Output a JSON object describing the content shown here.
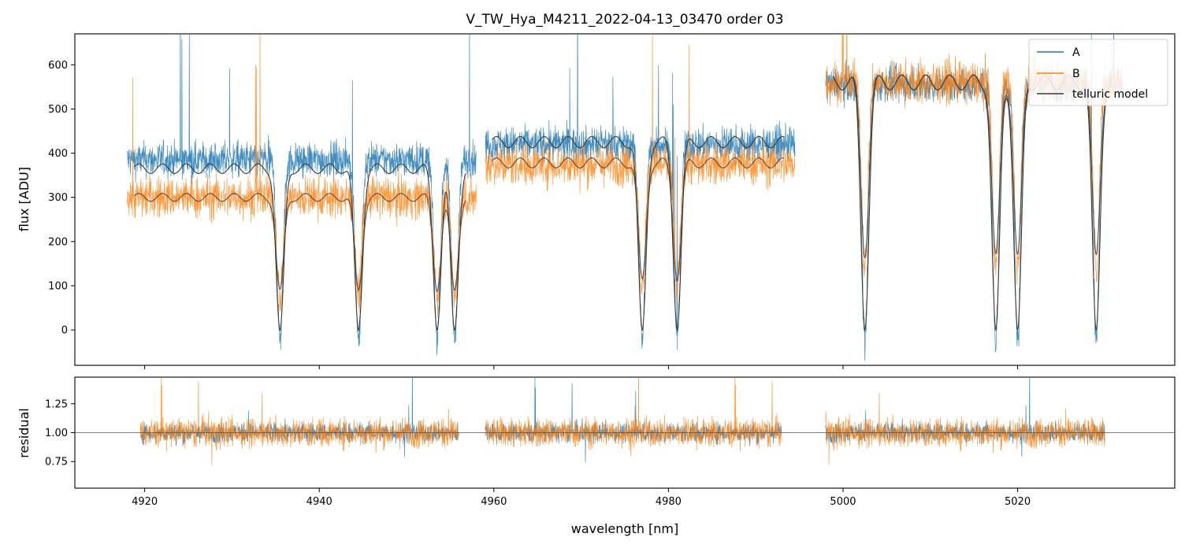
{
  "chart_data": [
    {
      "type": "line",
      "title": "V_TW_Hya_M4211_2022-04-13_03470  order 03",
      "xlabel": "",
      "ylabel": "flux [ADU]",
      "xlim": [
        4912,
        5038
      ],
      "ylim": [
        -80,
        670
      ],
      "xticks": [
        4920,
        4940,
        4960,
        4980,
        5000,
        5020
      ],
      "yticks": [
        0,
        100,
        200,
        300,
        400,
        500,
        600
      ],
      "ytick_labels": [
        "0",
        "100",
        "200",
        "300",
        "400",
        "500",
        "600"
      ],
      "legend": {
        "position": "top-right",
        "entries": [
          "A",
          "B",
          "telluric model"
        ]
      },
      "segments": [
        {
          "x": [
            4918,
            4958
          ],
          "continuum_A": 385,
          "continuum_B": 300,
          "model_A": 365,
          "model_B": 300
        },
        {
          "x": [
            4959,
            4994.5
          ],
          "continuum_A": 420,
          "continuum_B": 375,
          "model_A": 425,
          "model_B": 378
        },
        {
          "x": [
            4998,
            5032
          ],
          "continuum_A": 555,
          "continuum_B": 560,
          "model_A": 560,
          "model_B": 560
        }
      ],
      "absorption_lines_nm": [
        4935.5,
        4944.5,
        4953.5,
        4955.5,
        4977,
        4981,
        5002.5,
        5017.5,
        5020,
        5029
      ]
    },
    {
      "type": "line",
      "title": "",
      "xlabel": "wavelength [nm]",
      "ylabel": "residual",
      "xlim": [
        4912,
        5038
      ],
      "ylim": [
        0.52,
        1.48
      ],
      "xticks": [
        4920,
        4940,
        4960,
        4980,
        5000,
        5020
      ],
      "xtick_labels": [
        "4920",
        "4940",
        "4960",
        "4980",
        "5000",
        "5020"
      ],
      "yticks": [
        0.75,
        1.0,
        1.25
      ],
      "ytick_labels": [
        "0.75",
        "1.00",
        "1.25"
      ],
      "reference_line": 1.0,
      "series_names": [
        "A",
        "B"
      ],
      "segments_x": [
        [
          4919.5,
          4956
        ],
        [
          4959,
          4993
        ],
        [
          4998,
          5030
        ]
      ]
    }
  ],
  "colors": {
    "A": "#1f77b4",
    "B": "#ff7f0e",
    "model": "#3a3a3a"
  }
}
